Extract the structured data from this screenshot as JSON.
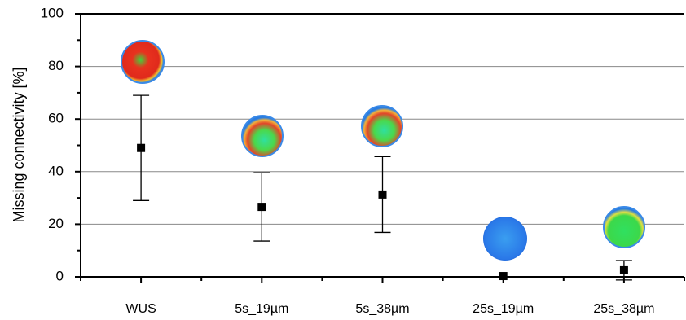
{
  "chart_data": {
    "type": "errorbar",
    "y_label": "Missing connectivity [%]",
    "categories": [
      "WUS",
      "5s_19µm",
      "5s_38µm",
      "25s_19µm",
      "25s_38µm"
    ],
    "values": [
      49,
      26.6,
      31.3,
      0.3,
      2.5
    ],
    "errors": [
      20,
      13,
      14.4,
      0,
      3.7
    ],
    "color": "#000000",
    "ylim": [
      0,
      100
    ],
    "yticks": [
      0,
      20,
      40,
      60,
      80,
      100
    ],
    "grid": true
  }
}
